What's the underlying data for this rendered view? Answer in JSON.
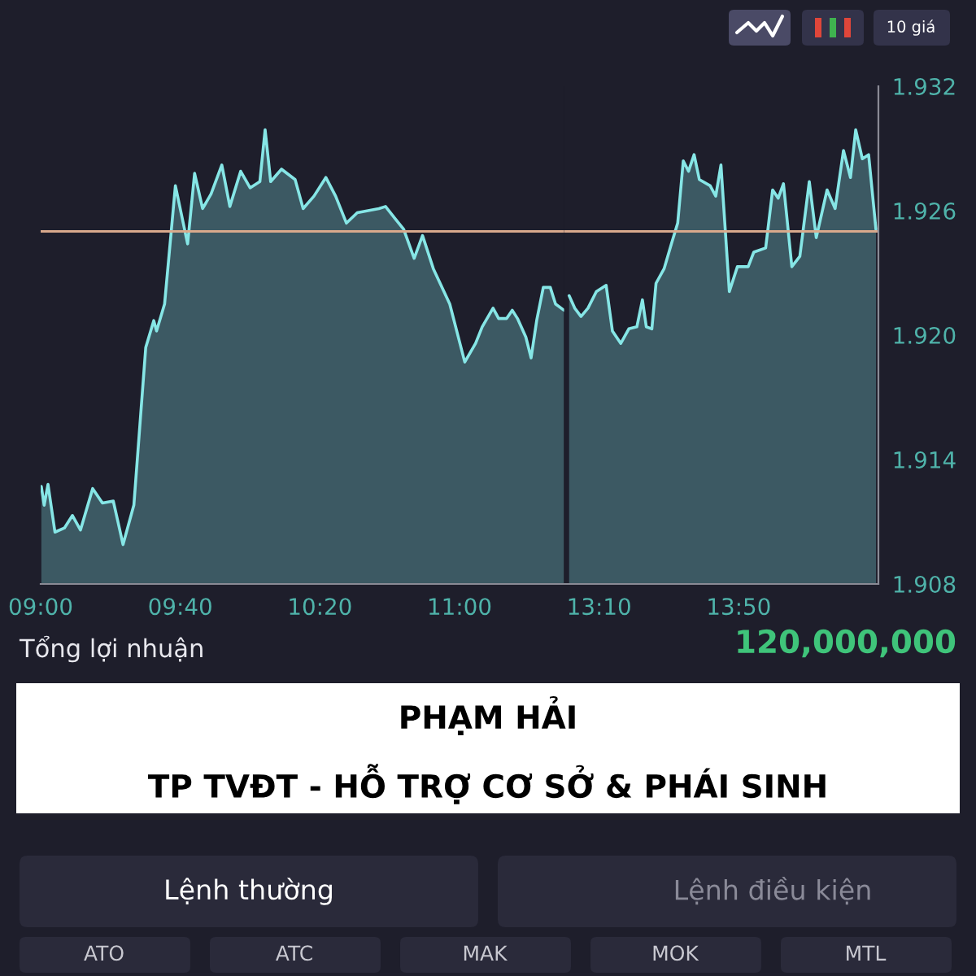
{
  "chart_data": [
    {
      "type": "area",
      "title": "PHẠM HẢI",
      "subtitle": "TP TVĐT - HỖ TRỢ CƠ SỞ & PHÁI SINH",
      "x": [
        9.0033,
        9.0167,
        9.035,
        9.0683,
        9.1133,
        9.1517,
        9.19,
        9.2483,
        9.295,
        9.3467,
        9.3667,
        9.3933,
        9.445,
        9.5017,
        9.54,
        9.5533,
        9.5917,
        9.6433,
        9.7017,
        9.735,
        9.7733,
        9.8133,
        9.865,
        9.9033,
        9.955,
        10.0,
        10.0467,
        10.0717,
        10.0983,
        10.15,
        10.215,
        10.2533,
        10.305,
        10.3617,
        10.4083,
        10.46,
        10.5117,
        10.615,
        10.6467,
        10.6933,
        10.7333,
        10.7833,
        10.8233,
        10.875,
        10.9533,
        11.025,
        11.0767,
        11.1083,
        11.16,
        11.1867,
        11.225,
        11.2517,
        11.2767,
        11.3167,
        11.3417,
        11.3683,
        11.4,
        11.4333,
        11.4583,
        11.4983
      ],
      "series": [
        {
          "color": "#86e6e6",
          "values": [
            1.9127,
            1.9118,
            1.9128,
            1.9105,
            1.9107,
            1.9113,
            1.9106,
            1.9126,
            1.9119,
            1.912,
            1.9111,
            1.9099,
            1.9118,
            1.9194,
            1.9207,
            1.9202,
            1.9215,
            1.9272,
            1.9244,
            1.9278,
            1.9261,
            1.9268,
            1.9282,
            1.9262,
            1.9279,
            1.9271,
            1.9274,
            1.9299,
            1.9274,
            1.928,
            1.9275,
            1.9261,
            1.9267,
            1.9276,
            1.9267,
            1.9254,
            1.9259,
            1.9261,
            1.9262,
            1.9256,
            1.9251,
            1.9237,
            1.9248,
            1.9232,
            1.9215,
            1.9187,
            1.9196,
            1.9204,
            1.9213,
            1.9208,
            1.9208,
            1.9212,
            1.9208,
            1.9199,
            1.9189,
            1.9207,
            1.9223,
            1.9223,
            1.9215,
            1.9212
          ]
        }
      ],
      "xlim": [
        9,
        11.5
      ],
      "xticks": [
        {
          "value": 9,
          "label": "09:00"
        },
        {
          "value": 9.6667,
          "label": "09:40"
        },
        {
          "value": 10.3333,
          "label": "10:20"
        },
        {
          "value": 11,
          "label": "11:00"
        }
      ],
      "ylim": [
        1.908,
        1.932
      ],
      "tick_labels": "x",
      "ref_lines": [
        {
          "axis": "y",
          "value": 1.925,
          "color": "#d9a98c"
        }
      ],
      "annotations": [
        "10 giá",
        "Tổng lợi nhuận",
        "120,000,000",
        "Lệnh thường",
        "Lệnh điều kiện",
        "ATO",
        "ATC",
        "MAK",
        "MOK",
        "MTL"
      ]
    },
    {
      "type": "area",
      "x": [
        13.0233,
        13.05,
        13.08,
        13.1133,
        13.1533,
        13.2,
        13.23,
        13.27,
        13.3083,
        13.3467,
        13.3733,
        13.3917,
        13.4183,
        13.4383,
        13.4767,
        13.5117,
        13.5417,
        13.5683,
        13.5933,
        13.62,
        13.645,
        13.6967,
        13.7233,
        13.7483,
        13.7883,
        13.8267,
        13.8783,
        13.905,
        13.9617,
        13.995,
        14.0217,
        14.0467,
        14.0867,
        14.125,
        14.17,
        14.2033,
        14.255,
        14.2933,
        14.3333,
        14.3667,
        14.3917,
        14.4233,
        14.4533,
        14.4883
      ],
      "series": [
        {
          "color": "#86e6e6",
          "values": [
            1.9219,
            1.9213,
            1.9209,
            1.9213,
            1.9221,
            1.9224,
            1.9202,
            1.9196,
            1.9203,
            1.9204,
            1.9217,
            1.9204,
            1.9203,
            1.9225,
            1.9232,
            1.9244,
            1.9254,
            1.9284,
            1.9279,
            1.9287,
            1.9275,
            1.9272,
            1.9267,
            1.9282,
            1.9221,
            1.9233,
            1.9233,
            1.924,
            1.9242,
            1.927,
            1.9266,
            1.9273,
            1.9233,
            1.9238,
            1.9274,
            1.9247,
            1.927,
            1.9261,
            1.9289,
            1.9276,
            1.9299,
            1.9285,
            1.9287,
            1.9251
          ]
        }
      ],
      "xlim": [
        13,
        14.5
      ],
      "xticks": [
        {
          "value": 13.1667,
          "label": "13:10"
        },
        {
          "value": 13.8333,
          "label": "13:50"
        }
      ],
      "ylim": [
        1.908,
        1.932
      ],
      "yticks": [
        1.908,
        1.914,
        {
          "value": 1.92,
          "label": "1.920"
        },
        1.926,
        1.932
      ],
      "ref_lines": [
        {
          "axis": "y",
          "value": 1.925,
          "color": "#d9a98c"
        }
      ]
    }
  ]
}
